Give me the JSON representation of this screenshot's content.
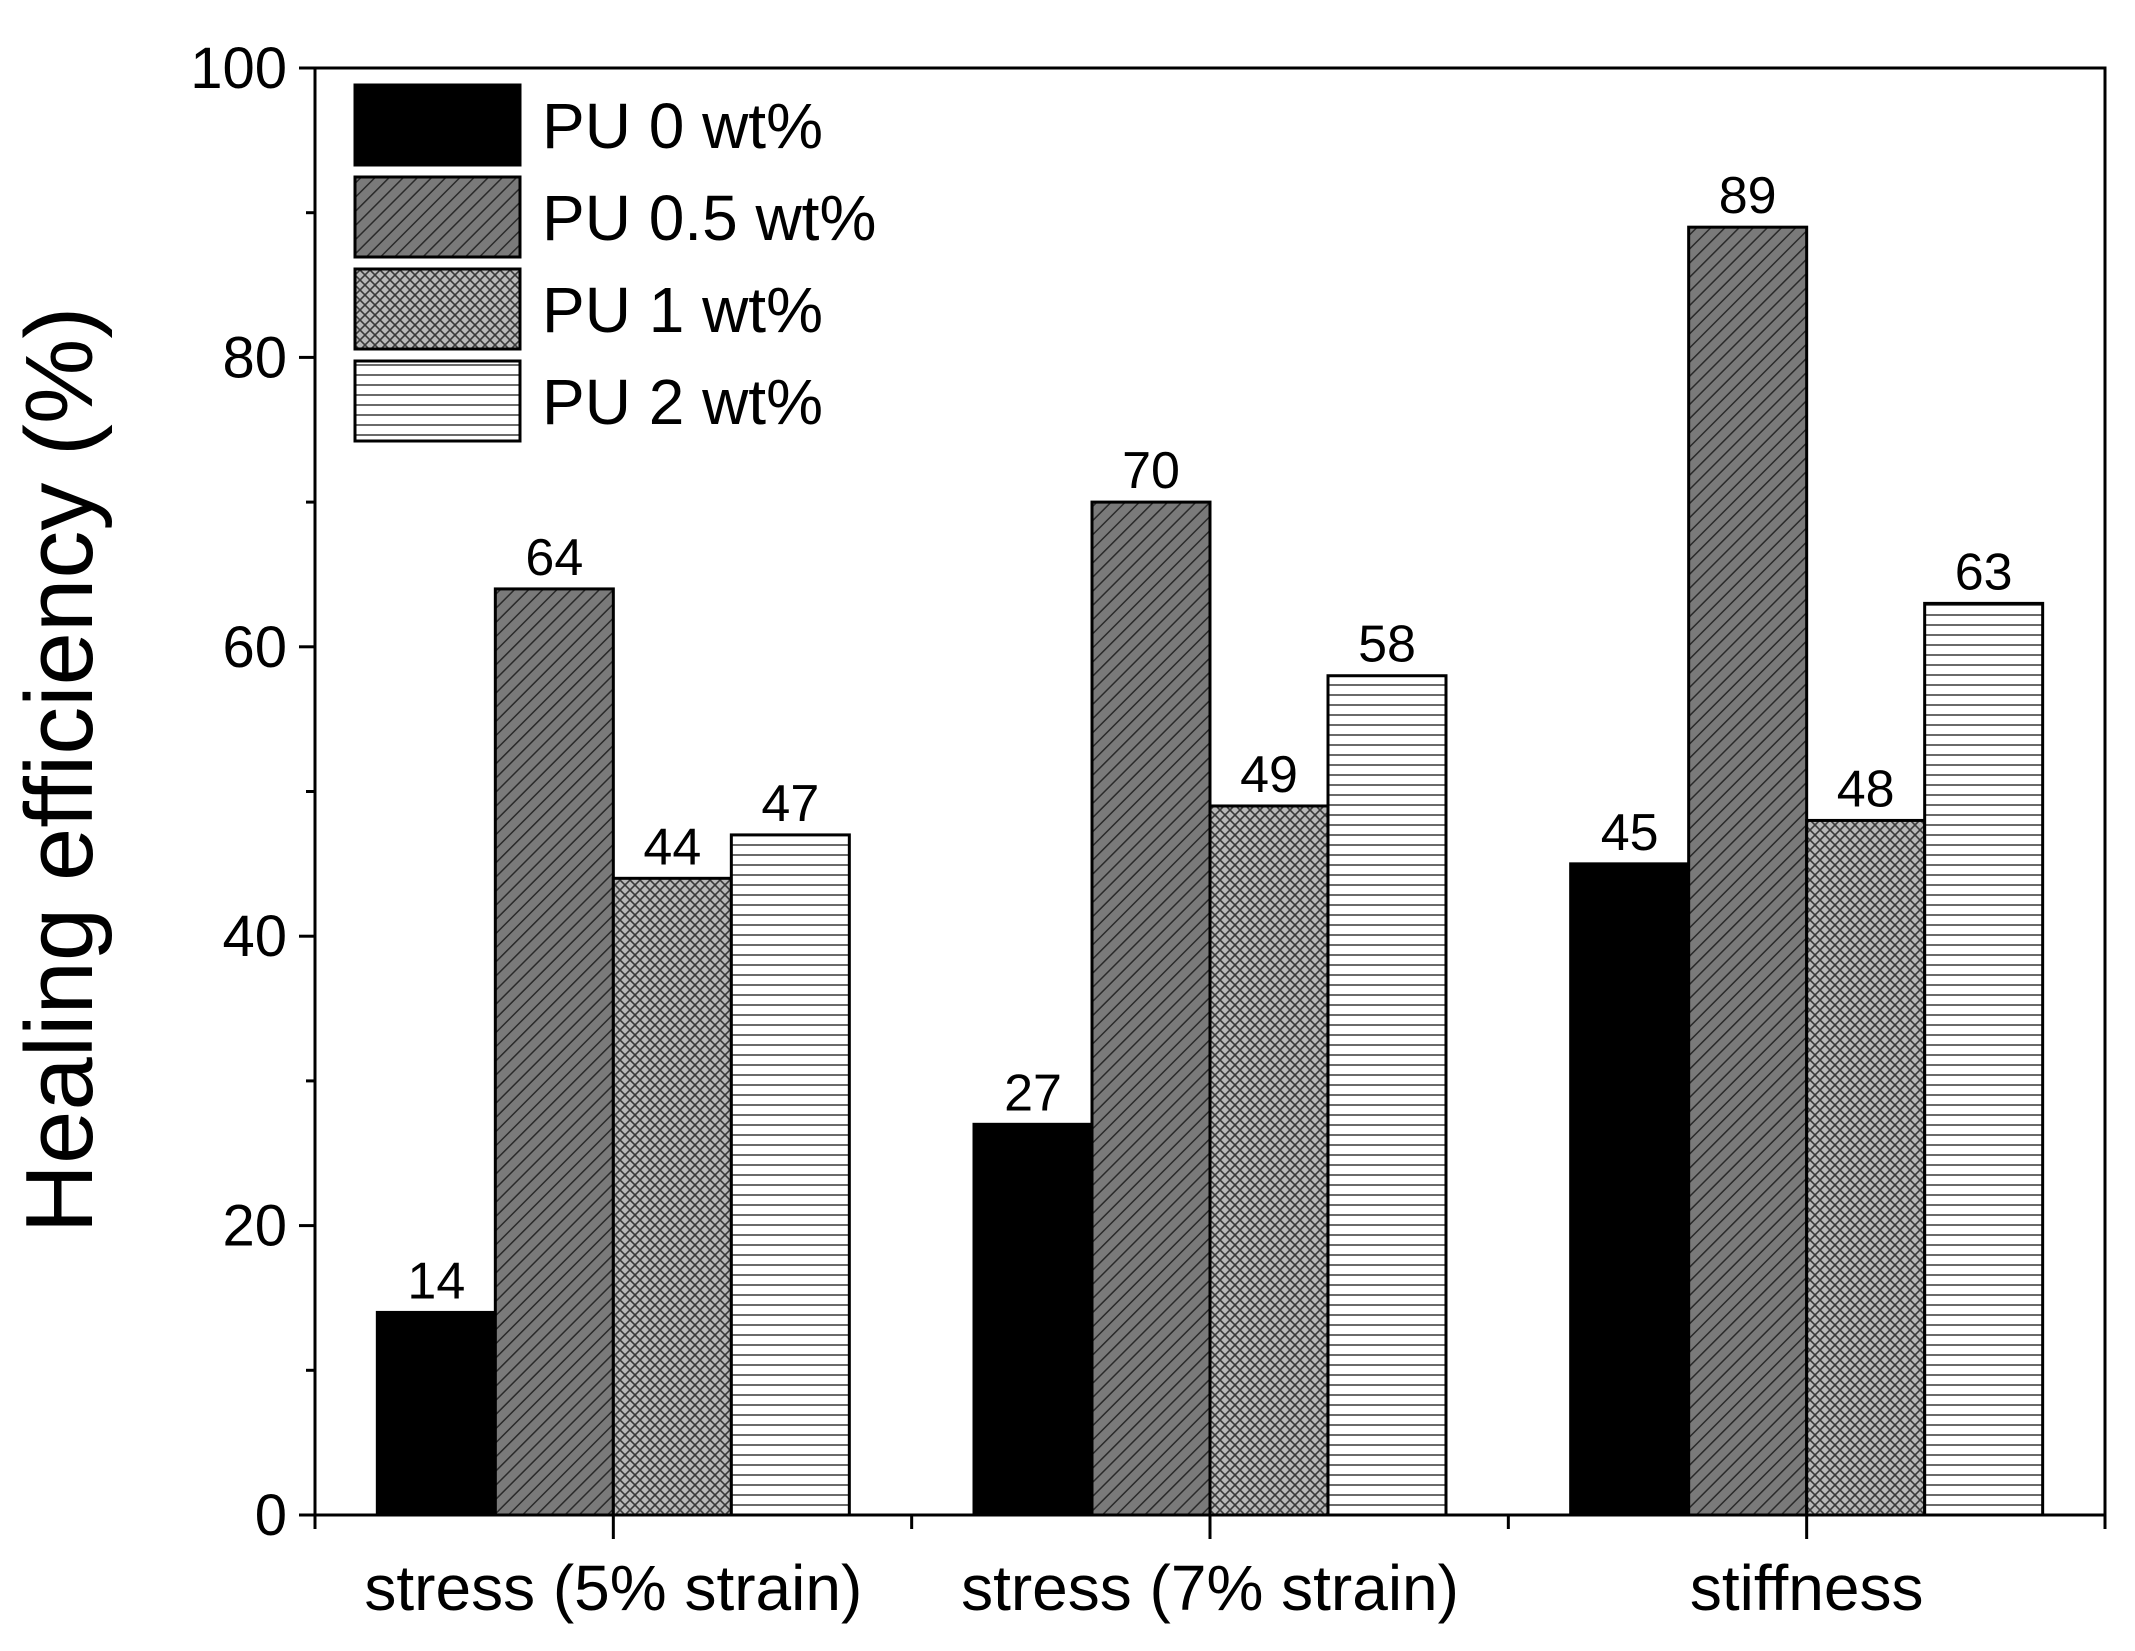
{
  "chart_data": {
    "type": "bar",
    "title": "",
    "xlabel": "",
    "ylabel": "Healing efficiency (%)",
    "ylim": [
      0,
      100
    ],
    "yticks_major": [
      0,
      20,
      40,
      60,
      80,
      100
    ],
    "yticks_minor": [
      10,
      30,
      50,
      70,
      90
    ],
    "categories": [
      "stress (5% strain)",
      "stress (7% strain)",
      "stiffness"
    ],
    "series": [
      {
        "name": "PU 0 wt%",
        "pattern": "solid",
        "values": [
          14,
          27,
          45
        ]
      },
      {
        "name": "PU 0.5 wt%",
        "pattern": "diagonal",
        "values": [
          64,
          70,
          89
        ]
      },
      {
        "name": "PU 1 wt%",
        "pattern": "crosshatch",
        "values": [
          44,
          49,
          48
        ]
      },
      {
        "name": "PU 2 wt%",
        "pattern": "horizontal",
        "values": [
          47,
          58,
          63
        ]
      }
    ],
    "legend_position": "top-left",
    "grid": false,
    "colors": {
      "solid": "#000000",
      "diagonal": "#7a7a7a",
      "crosshatch": "#b0b0b0",
      "horizontal": "#ffffff"
    }
  }
}
